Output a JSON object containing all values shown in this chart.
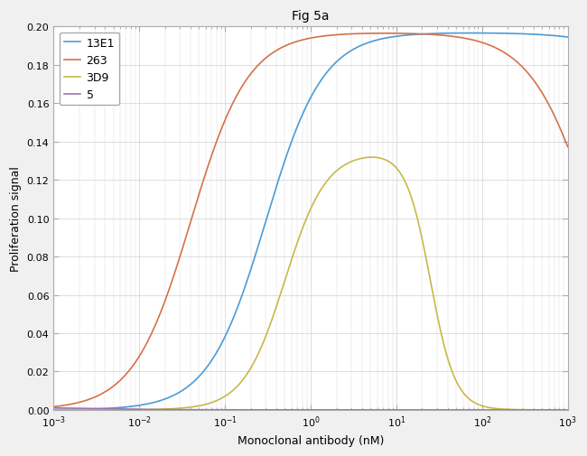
{
  "title": "Fig 5a",
  "xlabel": "Monoclonal antibody (nM)",
  "ylabel": "Proliferation signal",
  "xlim_log": [
    -3,
    3
  ],
  "ylim": [
    0,
    0.2
  ],
  "yticks": [
    0,
    0.02,
    0.04,
    0.06,
    0.08,
    0.1,
    0.12,
    0.14,
    0.16,
    0.18,
    0.2
  ],
  "curves": [
    {
      "label": "13E1",
      "color": "#4C9BD6",
      "ec50_act": 0.3,
      "hill_act": 1.3,
      "ec50_inh": 80000,
      "hill_inh": 1.0,
      "emax": 0.197
    },
    {
      "label": "263",
      "color": "#D4724A",
      "ec50_act": 0.04,
      "hill_act": 1.3,
      "ec50_inh": 2000,
      "hill_inh": 1.2,
      "emax": 0.197
    },
    {
      "label": "3D9",
      "color": "#C8B84A",
      "ec50_act": 0.5,
      "hill_act": 1.8,
      "ec50_inh": 25,
      "hill_inh": 3.0,
      "emax": 0.135
    },
    {
      "label": "5",
      "color": "#9B77B0",
      "ec50_act": 0.0005,
      "hill_act": 1.0,
      "ec50_inh": 0.001,
      "hill_inh": 1.0,
      "emax": 0.003
    }
  ],
  "background_color": "#f0f0f0",
  "plot_bg_color": "#ffffff",
  "grid_color": "#d8d8d8",
  "spine_color": "#aaaaaa",
  "title_fontsize": 10,
  "label_fontsize": 9,
  "tick_fontsize": 8,
  "legend_fontsize": 9,
  "linewidth": 1.2
}
